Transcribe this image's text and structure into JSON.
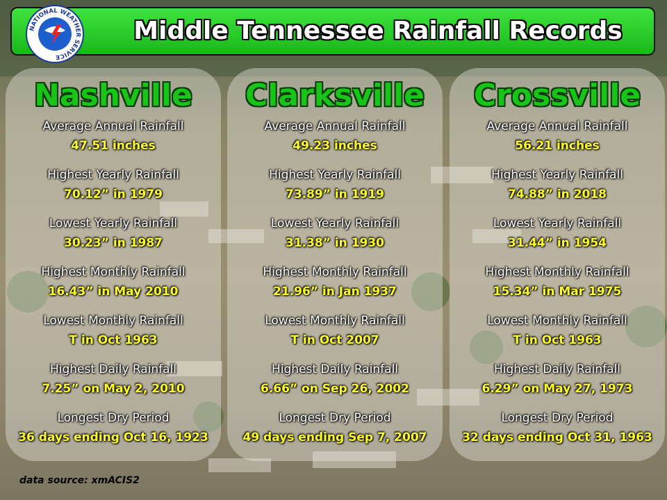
{
  "header": {
    "title": "Middle Tennessee Rainfall Records",
    "logo_text": "NATIONAL WEATHER SERVICE"
  },
  "panels": [
    {
      "city": "Nashville",
      "records": [
        {
          "label": "Average Annual Rainfall",
          "value": "47.51 inches"
        },
        {
          "label": "Highest Yearly Rainfall",
          "value": "70.12” in 1979"
        },
        {
          "label": "Lowest Yearly Rainfall",
          "value": "30.23” in 1987"
        },
        {
          "label": "Highest Monthly Rainfall",
          "value": "16.43” in May 2010"
        },
        {
          "label": "Lowest Monthly Rainfall",
          "value": "T in Oct 1963"
        },
        {
          "label": "Highest Daily Rainfall",
          "value": "7.25” on May 2, 2010"
        },
        {
          "label": "Longest Dry Period",
          "value": "36 days ending Oct 16, 1923"
        }
      ]
    },
    {
      "city": "Clarksville",
      "records": [
        {
          "label": "Average Annual Rainfall",
          "value": "49.23 inches"
        },
        {
          "label": "Highest Yearly Rainfall",
          "value": "73.89” in 1919"
        },
        {
          "label": "Lowest Yearly Rainfall",
          "value": "31.38” in 1930"
        },
        {
          "label": "Highest Monthly Rainfall",
          "value": "21.96” in Jan 1937"
        },
        {
          "label": "Lowest Monthly Rainfall",
          "value": "T in Oct 2007"
        },
        {
          "label": "Highest Daily Rainfall",
          "value": "6.66” on Sep 26, 2002"
        },
        {
          "label": "Longest Dry Period",
          "value": "49 days ending Sep 7, 2007"
        }
      ]
    },
    {
      "city": "Crossville",
      "records": [
        {
          "label": "Average Annual Rainfall",
          "value": "56.21 inches"
        },
        {
          "label": "Highest Yearly Rainfall",
          "value": "74.88” in 2018"
        },
        {
          "label": "Lowest Yearly Rainfall",
          "value": "31.44” in 1954"
        },
        {
          "label": "Highest Monthly Rainfall",
          "value": "15.34” in Mar 1975"
        },
        {
          "label": "Lowest Monthly Rainfall",
          "value": "T in Oct 1963"
        },
        {
          "label": "Highest Daily Rainfall",
          "value": "6.29” on May 27, 1973"
        },
        {
          "label": "Longest Dry Period",
          "value": "32 days ending Oct 31, 1963"
        }
      ]
    }
  ],
  "footer": {
    "source": "data source: xmACIS2"
  }
}
